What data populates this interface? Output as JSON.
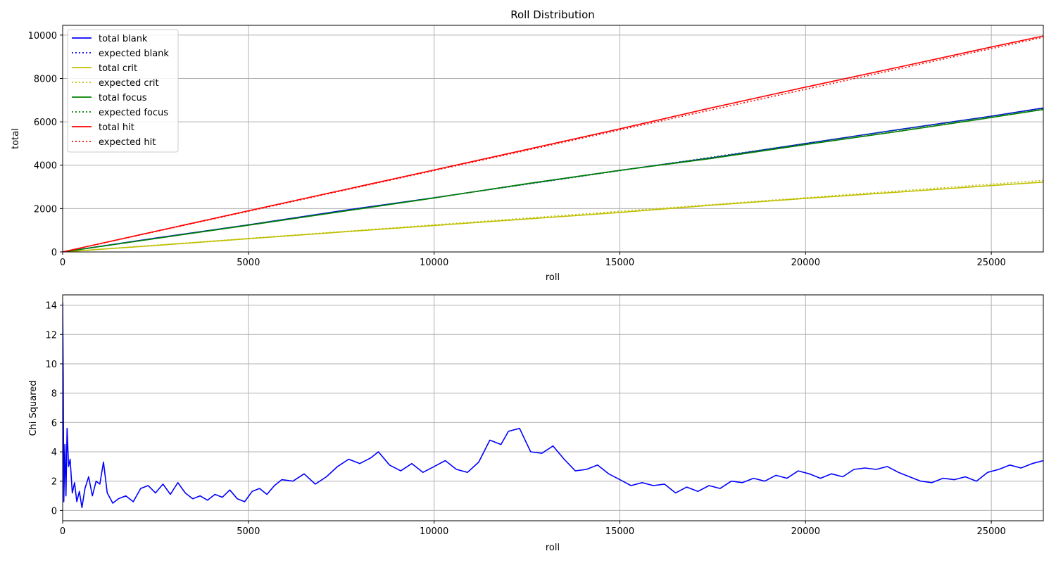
{
  "chart_data": [
    {
      "type": "line",
      "title": "Roll Distribution",
      "xlabel": "roll",
      "ylabel": "total",
      "xlim": [
        0,
        26400
      ],
      "ylim": [
        0,
        10450
      ],
      "x_ticks": [
        0,
        5000,
        10000,
        15000,
        20000,
        25000
      ],
      "y_ticks": [
        0,
        2000,
        4000,
        6000,
        8000,
        10000
      ],
      "grid": true,
      "legend_position": "top-left",
      "series": [
        {
          "name": "total blank",
          "color": "#0000ff",
          "style": "solid",
          "x": [
            0,
            2500,
            5000,
            7500,
            10000,
            12500,
            15000,
            17500,
            20000,
            22500,
            25000,
            26400
          ],
          "y": [
            0,
            640,
            1250,
            1900,
            2500,
            3140,
            3760,
            4350,
            5000,
            5640,
            6260,
            6640
          ]
        },
        {
          "name": "expected blank",
          "color": "#0000ff",
          "style": "dotted",
          "x": [
            0,
            26400
          ],
          "y": [
            0,
            6600
          ]
        },
        {
          "name": "total crit",
          "color": "#bfbf00",
          "style": "solid",
          "x": [
            0,
            2500,
            5000,
            7500,
            10000,
            12500,
            15000,
            17500,
            20000,
            22500,
            25000,
            26400
          ],
          "y": [
            0,
            300,
            610,
            920,
            1220,
            1520,
            1820,
            2160,
            2470,
            2760,
            3060,
            3220
          ]
        },
        {
          "name": "expected crit",
          "color": "#bfbf00",
          "style": "dotted",
          "x": [
            0,
            26400
          ],
          "y": [
            0,
            3300
          ]
        },
        {
          "name": "total focus",
          "color": "#008000",
          "style": "solid",
          "x": [
            0,
            2500,
            5000,
            7500,
            10000,
            12500,
            15000,
            17500,
            20000,
            22500,
            25000,
            26400
          ],
          "y": [
            0,
            620,
            1230,
            1860,
            2490,
            3150,
            3760,
            4320,
            4950,
            5560,
            6200,
            6570
          ]
        },
        {
          "name": "expected focus",
          "color": "#008000",
          "style": "dotted",
          "x": [
            0,
            26400
          ],
          "y": [
            0,
            6600
          ]
        },
        {
          "name": "total hit",
          "color": "#ff0000",
          "style": "solid",
          "x": [
            0,
            2500,
            5000,
            7500,
            10000,
            12500,
            15000,
            17500,
            20000,
            22500,
            25000,
            26400
          ],
          "y": [
            0,
            950,
            1900,
            2840,
            3780,
            4730,
            5680,
            6660,
            7600,
            8520,
            9450,
            9960
          ]
        },
        {
          "name": "expected hit",
          "color": "#ff0000",
          "style": "dotted",
          "x": [
            0,
            26400
          ],
          "y": [
            0,
            9900
          ]
        }
      ]
    },
    {
      "type": "line",
      "title": "",
      "xlabel": "roll",
      "ylabel": "Chi Squared",
      "xlim": [
        0,
        26400
      ],
      "ylim": [
        -0.7,
        14.7
      ],
      "x_ticks": [
        0,
        5000,
        10000,
        15000,
        20000,
        25000
      ],
      "y_ticks": [
        0,
        2,
        4,
        6,
        8,
        10,
        12,
        14
      ],
      "grid": true,
      "series": [
        {
          "color": "#0000ff",
          "style": "solid",
          "x": [
            0,
            15,
            30,
            60,
            90,
            120,
            160,
            200,
            260,
            320,
            380,
            450,
            520,
            600,
            700,
            800,
            900,
            1000,
            1100,
            1200,
            1350,
            1500,
            1700,
            1900,
            2100,
            2300,
            2500,
            2700,
            2900,
            3100,
            3300,
            3500,
            3700,
            3900,
            4100,
            4300,
            4500,
            4700,
            4900,
            5100,
            5300,
            5500,
            5700,
            5900,
            6200,
            6500,
            6800,
            7100,
            7400,
            7700,
            8000,
            8300,
            8500,
            8800,
            9100,
            9400,
            9700,
            10000,
            10300,
            10600,
            10900,
            11200,
            11500,
            11800,
            12000,
            12300,
            12600,
            12900,
            13200,
            13500,
            13800,
            14100,
            14400,
            14700,
            15000,
            15300,
            15600,
            15900,
            16200,
            16500,
            16800,
            17100,
            17400,
            17700,
            18000,
            18300,
            18600,
            18900,
            19200,
            19500,
            19800,
            20100,
            20400,
            20700,
            21000,
            21300,
            21600,
            21900,
            22200,
            22500,
            22800,
            23100,
            23400,
            23700,
            24000,
            24300,
            24600,
            24900,
            25200,
            25500,
            25800,
            26100,
            26400
          ],
          "y": [
            14.2,
            9.2,
            0.6,
            4.5,
            1.0,
            5.6,
            3.0,
            3.5,
            1.2,
            1.9,
            0.6,
            1.3,
            0.2,
            1.5,
            2.3,
            1.0,
            2.0,
            1.8,
            3.3,
            1.2,
            0.5,
            0.8,
            1.0,
            0.6,
            1.5,
            1.7,
            1.2,
            1.8,
            1.1,
            1.9,
            1.2,
            0.8,
            1.0,
            0.7,
            1.1,
            0.9,
            1.4,
            0.8,
            0.6,
            1.3,
            1.5,
            1.1,
            1.7,
            2.1,
            2.0,
            2.5,
            1.8,
            2.3,
            3.0,
            3.5,
            3.2,
            3.6,
            4.0,
            3.1,
            2.7,
            3.2,
            2.6,
            3.0,
            3.4,
            2.8,
            2.6,
            3.3,
            4.8,
            4.5,
            5.4,
            5.6,
            4.0,
            3.9,
            4.4,
            3.5,
            2.7,
            2.8,
            3.1,
            2.5,
            2.1,
            1.7,
            1.9,
            1.7,
            1.8,
            1.2,
            1.6,
            1.3,
            1.7,
            1.5,
            2.0,
            1.9,
            2.2,
            2.0,
            2.4,
            2.2,
            2.7,
            2.5,
            2.2,
            2.5,
            2.3,
            2.8,
            2.9,
            2.8,
            3.0,
            2.6,
            2.3,
            2.0,
            1.9,
            2.2,
            2.1,
            2.3,
            2.0,
            2.6,
            2.8,
            3.1,
            2.9,
            3.2,
            3.4
          ]
        }
      ]
    }
  ]
}
